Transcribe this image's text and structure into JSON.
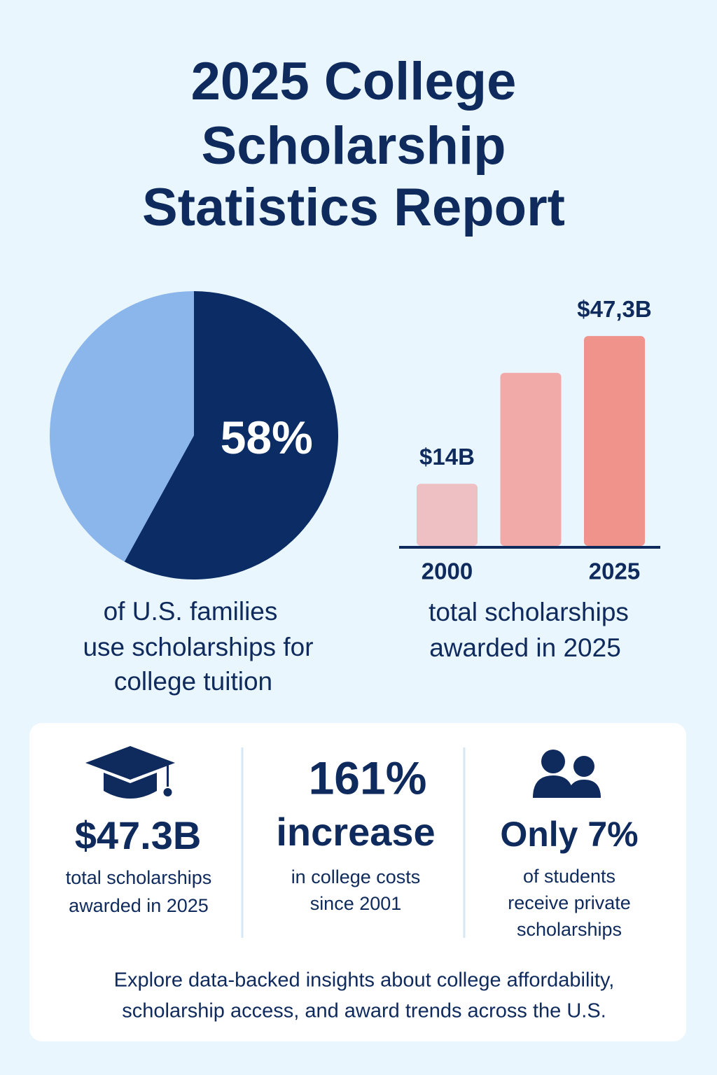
{
  "title": [
    "2025 College",
    "Scholarship",
    "Statistics Report"
  ],
  "chart_data": [
    {
      "type": "pie",
      "categories": [
        null,
        null
      ],
      "values": [
        58,
        42
      ],
      "value_labels": [
        "58%",
        null
      ],
      "colors": [
        "#0b2c64",
        "#8bb6ec"
      ],
      "caption": [
        "of U.S. families",
        "use scholarships for",
        "college tuition"
      ]
    },
    {
      "type": "bar",
      "categories": [
        "2000",
        null,
        "2025"
      ],
      "values": [
        14,
        39,
        47.3
      ],
      "value_labels": [
        "$14B",
        null,
        "$47,3B"
      ],
      "colors": [
        "#eebfc3",
        "#f2aaa9",
        "#f0938a"
      ],
      "ylim": [
        0,
        50
      ],
      "caption": [
        "total scholarships",
        "awarded in 2025"
      ]
    }
  ],
  "stats": [
    {
      "value": "$47.3B",
      "lines": [
        "total scholarships",
        "awarded in 2025"
      ]
    },
    {
      "value": "161%",
      "headline": "increase",
      "lines": [
        "in college costs",
        "since 2001"
      ]
    },
    {
      "value": "Only 7%",
      "lines": [
        "of students",
        "receive private",
        "scholarships"
      ]
    }
  ],
  "footer": [
    "Explore data-backed insights about college affordability,",
    "scholarship access, and award trends across the U.S."
  ]
}
